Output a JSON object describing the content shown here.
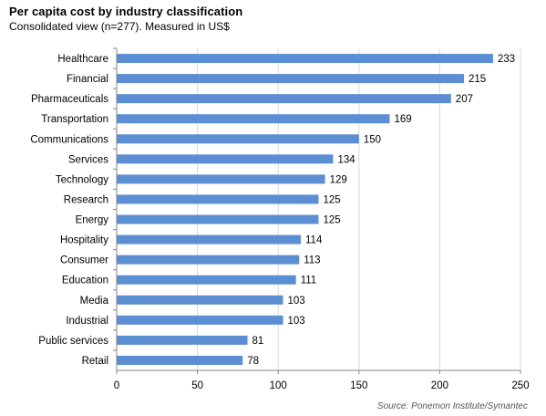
{
  "chart_data": {
    "type": "bar",
    "orientation": "horizontal",
    "title": "Per capita cost by industry classification",
    "subtitle": "Consolidated view (n=277). Measured in US$",
    "categories": [
      "Healthcare",
      "Financial",
      "Pharmaceuticals",
      "Transportation",
      "Communications",
      "Services",
      "Technology",
      "Research",
      "Energy",
      "Hospitality",
      "Consumer",
      "Education",
      "Media",
      "Industrial",
      "Public services",
      "Retail"
    ],
    "values": [
      233,
      215,
      207,
      169,
      150,
      134,
      129,
      125,
      125,
      114,
      113,
      111,
      103,
      103,
      81,
      78
    ],
    "xlim": [
      0,
      250
    ],
    "xticks": [
      0,
      50,
      100,
      150,
      200,
      250
    ],
    "grid": true,
    "data_labels": true,
    "bar_color": "#5b8ed2",
    "grid_color": "#d9d9d9",
    "source": "Source: Ponemon Institute/Symantec"
  }
}
